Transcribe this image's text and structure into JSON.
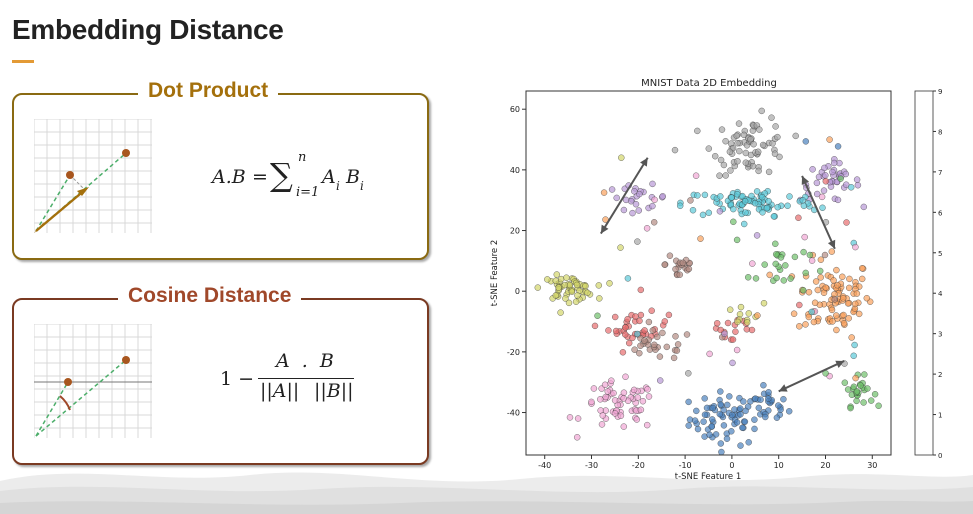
{
  "slide": {
    "title": "Embedding Distance"
  },
  "dot_card": {
    "label": "Dot Product",
    "lhs": "A.B",
    "sum_upper": "n",
    "sum_lower": "i=1",
    "term_a": "A",
    "term_a_sub": "i",
    "term_b": "B",
    "term_b_sub": "i"
  },
  "cos_card": {
    "label": "Cosine Distance",
    "one_minus": "1 −",
    "numerator": "A  .  B",
    "denominator_a": "||A||",
    "denominator_b": "||B||"
  },
  "colors": {
    "accent": "#e39a35",
    "dot_border": "#8a6a12",
    "cos_border": "#7a3a22",
    "green_dashed": "#4cae6a",
    "arrow_brown": "#a4700c",
    "point_brown": "#a8561e"
  },
  "chart_data": {
    "type": "scatter",
    "title": "MNIST Data 2D Embedding",
    "xlabel": "t-SNE Feature 1",
    "ylabel": "t-SNE Feature 2",
    "xlim": [
      -44,
      34
    ],
    "ylim": [
      -54,
      66
    ],
    "xticks": [
      -40,
      -30,
      -20,
      -10,
      0,
      10,
      20,
      30
    ],
    "yticks": [
      -40,
      -20,
      0,
      20,
      40,
      60
    ],
    "colorbar": {
      "ticks": [
        "0",
        "1",
        "2",
        "3",
        "4",
        "5",
        "6",
        "7",
        "8",
        "9"
      ],
      "colors": [
        "#4c82bd",
        "#f9a15c",
        "#6fbf6b",
        "#e76c6d",
        "#b898d6",
        "#b38b83",
        "#f1a7d4",
        "#a6a6a6",
        "#d3d56b",
        "#5cc9d9"
      ]
    },
    "clusters": [
      {
        "digit": 0,
        "cx": -1,
        "cy": -42,
        "sx": 5,
        "sy": 5.5,
        "n": 70
      },
      {
        "digit": 0,
        "cx": 8,
        "cy": -38,
        "sx": 2.5,
        "sy": 3.5,
        "n": 22
      },
      {
        "digit": 1,
        "cx": 22,
        "cy": -2,
        "sx": 5,
        "sy": 8,
        "n": 90
      },
      {
        "digit": 2,
        "cx": 27,
        "cy": -33,
        "sx": 2,
        "sy": 3,
        "n": 25
      },
      {
        "digit": 2,
        "cx": 10,
        "cy": 8,
        "sx": 4,
        "sy": 6,
        "n": 22
      },
      {
        "digit": 3,
        "cx": -20,
        "cy": -12,
        "sx": 4,
        "sy": 3,
        "n": 35
      },
      {
        "digit": 3,
        "cx": 0,
        "cy": -12,
        "sx": 4,
        "sy": 4,
        "n": 15
      },
      {
        "digit": 4,
        "cx": -20,
        "cy": 31,
        "sx": 4,
        "sy": 2.5,
        "n": 22
      },
      {
        "digit": 4,
        "cx": 21,
        "cy": 36,
        "sx": 4,
        "sy": 4,
        "n": 40
      },
      {
        "digit": 5,
        "cx": -11,
        "cy": 9,
        "sx": 2,
        "sy": 4,
        "n": 20
      },
      {
        "digit": 5,
        "cx": -16,
        "cy": -18,
        "sx": 5,
        "sy": 3,
        "n": 25
      },
      {
        "digit": 6,
        "cx": -24,
        "cy": -38,
        "sx": 5,
        "sy": 5,
        "n": 60
      },
      {
        "digit": 7,
        "cx": 4,
        "cy": 48,
        "sx": 5,
        "sy": 6,
        "n": 70
      },
      {
        "digit": 8,
        "cx": -35,
        "cy": 1,
        "sx": 3.5,
        "sy": 2.5,
        "n": 55
      },
      {
        "digit": 8,
        "cx": 2,
        "cy": -8,
        "sx": 3,
        "sy": 2.5,
        "n": 10
      },
      {
        "digit": 9,
        "cx": 4,
        "cy": 29,
        "sx": 9,
        "sy": 3,
        "n": 80
      }
    ],
    "arrows": [
      {
        "from": [
          -28,
          19
        ],
        "to": [
          -18,
          44
        ]
      },
      {
        "from": [
          15,
          38
        ],
        "to": [
          22,
          14
        ]
      },
      {
        "from": [
          10,
          -33
        ],
        "to": [
          24,
          -23
        ]
      }
    ]
  }
}
